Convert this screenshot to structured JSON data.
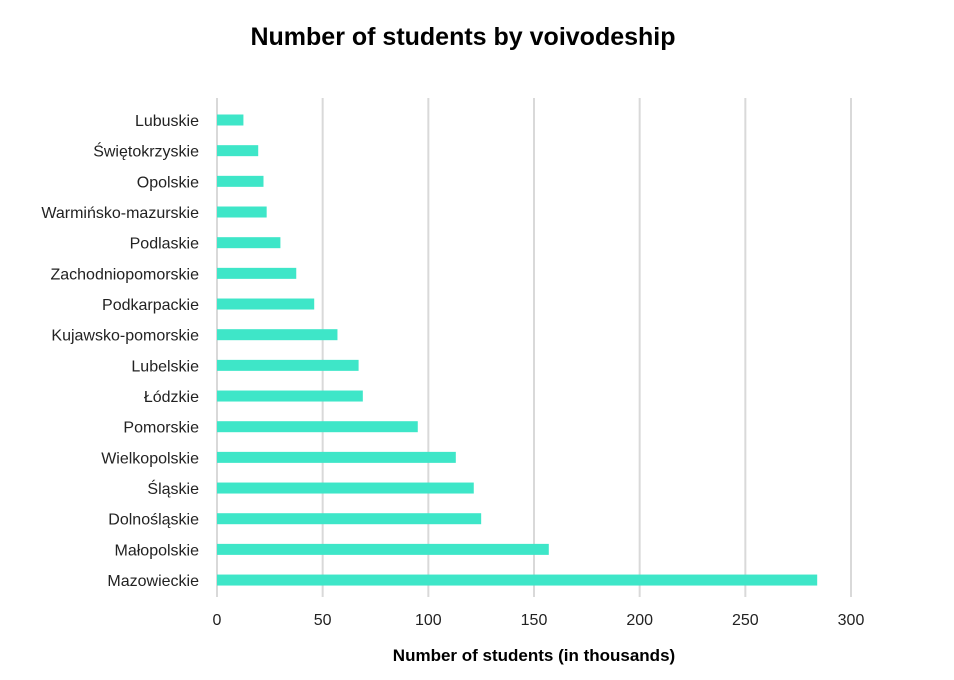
{
  "chart_data": {
    "type": "bar",
    "orientation": "horizontal",
    "title": "Number of students by voivodeship",
    "xlabel": "Number of students (in thousands)",
    "ylabel": "",
    "xlim": [
      0,
      300
    ],
    "ticks": [
      0,
      50,
      100,
      150,
      200,
      250,
      300
    ],
    "grid": true,
    "legend": "none",
    "bar_color": "#3ee6c8",
    "categories": [
      "Lubuskie",
      "Świętokrzyskie",
      "Opolskie",
      "Warmińsko-mazurskie",
      "Podlaskie",
      "Zachodniopomorskie",
      "Podkarpackie",
      "Kujawsko-pomorskie",
      "Lubelskie",
      "Łódzkie",
      "Pomorskie",
      "Wielkopolskie",
      "Śląskie",
      "Dolnośląskie",
      "Małopolskie",
      "Mazowieckie"
    ],
    "values": [
      12.5,
      19.5,
      22,
      23.5,
      30,
      37.5,
      46,
      57,
      67,
      69,
      95,
      113,
      121.5,
      125,
      157,
      284
    ]
  }
}
